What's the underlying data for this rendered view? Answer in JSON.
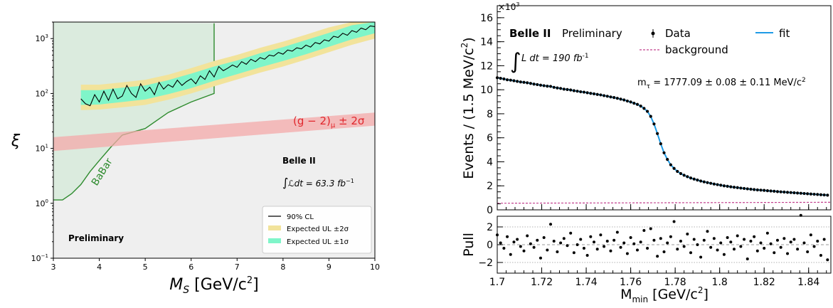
{
  "chart_data": [
    {
      "type": "line",
      "xlabel_main": "M",
      "xlabel_sub": "S",
      "xlabel_unit": " [GeV/c",
      "xlabel_sup": "2",
      "xlabel_close": "]",
      "ylabel": "ξ",
      "xlim": [
        3,
        10
      ],
      "ylim": [
        0.1,
        2000
      ],
      "y_scale": "log",
      "x_ticks": [
        "3",
        "4",
        "5",
        "6",
        "7",
        "8",
        "9",
        "10"
      ],
      "y_ticks": [
        {
          "v": 0.1,
          "base": "10",
          "exp": "−1"
        },
        {
          "v": 1,
          "base": "10",
          "exp": "0"
        },
        {
          "v": 10,
          "base": "10",
          "exp": "1"
        },
        {
          "v": 100,
          "base": "10",
          "exp": "2"
        },
        {
          "v": 1000,
          "base": "10",
          "exp": "3"
        }
      ],
      "babar": {
        "label": "BaBar",
        "color": "#2e8b2e",
        "fill": "#d8eadb",
        "x": [
          3.0,
          3.2,
          3.4,
          3.6,
          3.8,
          4.0,
          4.25,
          4.5,
          5.0,
          5.5,
          6.0,
          6.5,
          6.5,
          6.5
        ],
        "y": [
          1.15,
          1.15,
          1.5,
          2.2,
          3.8,
          6.0,
          10.5,
          17.5,
          23,
          45,
          70,
          100,
          500,
          1900
        ]
      },
      "gminus2": {
        "label_left": "(g − 2)",
        "label_sub": "μ",
        "label_right": " ± 2σ",
        "color": "#f4aaaa",
        "text_color": "#e0262c",
        "x": [
          3.0,
          10.0
        ],
        "low": [
          9.0,
          26.0
        ],
        "high": [
          16.0,
          45.0
        ]
      },
      "observed": {
        "name": "90% CL",
        "x": [
          3.6,
          3.7,
          3.8,
          3.9,
          4.0,
          4.1,
          4.2,
          4.3,
          4.4,
          4.5,
          4.6,
          4.7,
          4.8,
          4.9,
          5.0,
          5.1,
          5.2,
          5.3,
          5.4,
          5.5,
          5.6,
          5.7,
          5.8,
          5.9,
          6.0,
          6.1,
          6.2,
          6.3,
          6.4,
          6.5,
          6.6,
          6.7,
          6.8,
          6.9,
          7.0,
          7.1,
          7.2,
          7.3,
          7.4,
          7.5,
          7.6,
          7.7,
          7.8,
          7.9,
          8.0,
          8.1,
          8.2,
          8.3,
          8.4,
          8.5,
          8.6,
          8.7,
          8.8,
          8.9,
          9.0,
          9.1,
          9.2,
          9.3,
          9.4,
          9.5,
          9.6,
          9.7,
          9.8,
          9.9,
          10.0
        ],
        "y": [
          80,
          65,
          60,
          95,
          70,
          110,
          75,
          120,
          80,
          90,
          140,
          100,
          85,
          150,
          110,
          130,
          95,
          160,
          120,
          145,
          130,
          175,
          140,
          165,
          185,
          150,
          210,
          180,
          260,
          200,
          310,
          260,
          290,
          330,
          300,
          380,
          340,
          420,
          380,
          450,
          420,
          500,
          480,
          560,
          520,
          620,
          590,
          680,
          650,
          760,
          700,
          850,
          800,
          950,
          900,
          1100,
          1050,
          1250,
          1150,
          1400,
          1300,
          1550,
          1450,
          1700,
          1650
        ]
      },
      "expected": {
        "x": [
          3.6,
          4.0,
          4.5,
          5.0,
          5.5,
          6.0,
          6.5,
          7.0,
          7.5,
          8.0,
          8.5,
          9.0,
          9.5,
          10.0
        ],
        "median": [
          85,
          85,
          95,
          105,
          130,
          170,
          230,
          300,
          400,
          520,
          700,
          950,
          1300,
          1650
        ],
        "one_low": [
          62,
          63,
          70,
          78,
          97,
          125,
          170,
          225,
          300,
          390,
          520,
          710,
          970,
          1250
        ],
        "one_high": [
          115,
          115,
          128,
          140,
          175,
          230,
          310,
          400,
          540,
          700,
          940,
          1270,
          1750,
          2000
        ],
        "two_low": [
          50,
          51,
          56,
          62,
          77,
          100,
          135,
          180,
          240,
          310,
          415,
          565,
          770,
          1000
        ],
        "two_high": [
          145,
          145,
          160,
          178,
          220,
          290,
          390,
          505,
          680,
          880,
          1180,
          1600,
          2000,
          2000
        ],
        "one_color": "#7ff5c9",
        "two_color": "#f2e39b"
      },
      "legend": {
        "placement": "bottom-right",
        "entries": [
          {
            "label": "90% CL",
            "kind": "line",
            "color": "#000000"
          },
          {
            "label": "Expected UL ±2σ",
            "kind": "box",
            "color": "#f2e39b"
          },
          {
            "label": "Expected UL ±1σ",
            "kind": "box",
            "color": "#7ff5c9"
          }
        ]
      },
      "annotations": {
        "experiment": "Belle II",
        "lumi_symbol": "∫",
        "lumi_text": "ℒdt = 63.3 fb",
        "lumi_exp": "−1",
        "preliminary": "Preliminary"
      }
    },
    {
      "type": "scatter",
      "xlabel_main": "M",
      "xlabel_sub": "min",
      "xlabel_unit": " [GeV/c",
      "xlabel_sup": "2",
      "xlabel_close": "]",
      "ylabel_main": "Events / (1.5 MeV/c",
      "ylabel_sup": "2",
      "ylabel_close": ")",
      "ylabel_pull": "Pull",
      "xlim": [
        1.7,
        1.85
      ],
      "ylim": [
        0,
        17000
      ],
      "y_multiplier_base": "×10",
      "y_multiplier_exp": "3",
      "x_ticks": [
        "1.7",
        "1.72",
        "1.74",
        "1.76",
        "1.78",
        "1.8",
        "1.82",
        "1.84"
      ],
      "y_ticks": [
        "0",
        "2",
        "4",
        "6",
        "8",
        "10",
        "12",
        "14",
        "16"
      ],
      "pull_ylim": [
        -3.2,
        3.2
      ],
      "pull_ticks": [
        "−2",
        "0",
        "2"
      ],
      "fit_color": "#1e9be6",
      "bkg_color": "#c2408e",
      "background_level": 550,
      "x": [
        1.7,
        1.7015,
        1.703,
        1.7045,
        1.706,
        1.7075,
        1.709,
        1.7105,
        1.712,
        1.7135,
        1.715,
        1.7165,
        1.718,
        1.7195,
        1.721,
        1.7225,
        1.724,
        1.7255,
        1.727,
        1.7285,
        1.73,
        1.7315,
        1.733,
        1.7345,
        1.736,
        1.7375,
        1.739,
        1.7405,
        1.742,
        1.7435,
        1.745,
        1.7465,
        1.748,
        1.7495,
        1.751,
        1.7525,
        1.754,
        1.7555,
        1.757,
        1.7585,
        1.76,
        1.7615,
        1.763,
        1.7645,
        1.766,
        1.7675,
        1.769,
        1.7705,
        1.772,
        1.7735,
        1.775,
        1.7765,
        1.778,
        1.7795,
        1.781,
        1.7825,
        1.784,
        1.7855,
        1.787,
        1.7885,
        1.79,
        1.7915,
        1.793,
        1.7945,
        1.796,
        1.7975,
        1.799,
        1.8005,
        1.802,
        1.8035,
        1.805,
        1.8065,
        1.808,
        1.8095,
        1.811,
        1.8125,
        1.814,
        1.8155,
        1.817,
        1.8185,
        1.82,
        1.8215,
        1.823,
        1.8245,
        1.826,
        1.8275,
        1.829,
        1.8305,
        1.832,
        1.8335,
        1.835,
        1.8365,
        1.838,
        1.8395,
        1.841,
        1.8425,
        1.844,
        1.8455,
        1.847,
        1.8485
      ],
      "y": [
        11000,
        10950,
        10900,
        10830,
        10800,
        10750,
        10700,
        10650,
        10620,
        10580,
        10530,
        10470,
        10430,
        10380,
        10340,
        10300,
        10280,
        10200,
        10150,
        10110,
        10050,
        10020,
        9980,
        9920,
        9880,
        9830,
        9800,
        9750,
        9700,
        9660,
        9610,
        9570,
        9510,
        9460,
        9400,
        9350,
        9290,
        9220,
        9150,
        9060,
        8980,
        8880,
        8780,
        8640,
        8450,
        8200,
        7780,
        7150,
        6350,
        5500,
        4750,
        4200,
        3750,
        3450,
        3200,
        3020,
        2880,
        2760,
        2650,
        2560,
        2480,
        2400,
        2330,
        2270,
        2210,
        2150,
        2100,
        2050,
        2000,
        1960,
        1920,
        1880,
        1850,
        1810,
        1780,
        1750,
        1720,
        1690,
        1660,
        1640,
        1620,
        1590,
        1570,
        1550,
        1520,
        1500,
        1480,
        1460,
        1440,
        1420,
        1400,
        1380,
        1360,
        1340,
        1320,
        1300,
        1280,
        1260,
        1240,
        1220
      ],
      "pulls": [
        1.1,
        0.2,
        -0.4,
        0.9,
        -1.1,
        0.3,
        0.6,
        -0.2,
        -0.7,
        1.0,
        0.1,
        -0.3,
        0.5,
        -1.5,
        0.8,
        -0.6,
        2.3,
        0.4,
        -0.8,
        0.2,
        0.7,
        -0.1,
        1.3,
        -0.9,
        0.0,
        0.6,
        -0.4,
        -1.2,
        0.9,
        0.3,
        -0.5,
        1.1,
        -0.2,
        0.4,
        -0.7,
        0.5,
        1.4,
        -0.3,
        0.2,
        -1.0,
        0.8,
        0.1,
        -0.6,
        0.3,
        1.6,
        -0.4,
        1.8,
        0.5,
        -1.3,
        0.7,
        -0.8,
        0.2,
        0.9,
        2.6,
        -0.5,
        0.4,
        -0.2,
        1.2,
        -0.9,
        0.6,
        0.0,
        -1.4,
        0.5,
        1.5,
        -0.3,
        0.7,
        -0.6,
        0.2,
        -1.1,
        0.8,
        0.3,
        -0.5,
        1.0,
        -0.2,
        0.6,
        -1.6,
        0.4,
        0.9,
        -0.7,
        0.2,
        -0.4,
        1.3,
        0.1,
        -0.9,
        0.5,
        -0.3,
        0.7,
        -1.0,
        0.3,
        0.6,
        -0.5,
        3.3,
        0.2,
        -0.8,
        1.1,
        -0.2,
        0.4,
        -1.2,
        0.6,
        -1.7
      ],
      "legend": {
        "placement": "top",
        "entries": [
          {
            "label": "Data",
            "kind": "point",
            "color": "#000000"
          },
          {
            "label": "fit",
            "kind": "line",
            "color": "#1e9be6"
          },
          {
            "label": "background",
            "kind": "dashed",
            "color": "#c2408e"
          }
        ]
      },
      "annotations": {
        "experiment": "Belle II",
        "status": "Preliminary",
        "lumi_symbol": "∫",
        "lumi_text": "L dt = 190 fb",
        "lumi_exp": "-1",
        "mass_symbol": "m",
        "mass_sub": "τ",
        "mass_text": " = 1777.09 ± 0.08 ± 0.11 MeV/c",
        "mass_sup": "2"
      }
    }
  ]
}
